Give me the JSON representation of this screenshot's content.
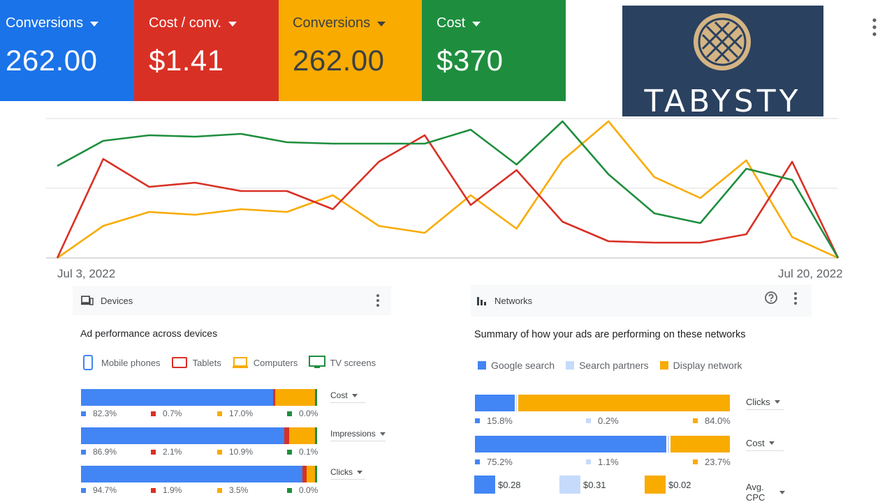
{
  "tiles": [
    {
      "label": "Conversions",
      "value": "262.00",
      "color": "#1a73e8",
      "text_color": "#ffffff"
    },
    {
      "label": "Cost / conv.",
      "value": "$1.41",
      "color": "#d93025",
      "text_color": "#ffffff"
    },
    {
      "label": "Conversions",
      "value": "262.00",
      "color": "#f9ab00",
      "text_color": "#3c4043"
    },
    {
      "label": "Cost",
      "value": "$370",
      "color": "#1e8e3e",
      "text_color": "#ffffff"
    }
  ],
  "logo": {
    "text": "TABYSTY",
    "background": "#2a4160",
    "emblem_color": "#d4b483"
  },
  "chart_data": {
    "type": "line",
    "x": [
      1,
      2,
      3,
      4,
      5,
      6,
      7,
      8,
      9,
      10,
      11,
      12,
      13,
      14,
      15,
      16,
      17,
      18
    ],
    "ylim": [
      0,
      100
    ],
    "grid": true,
    "series": [
      {
        "color": "#1e8e3e",
        "values": [
          66,
          84,
          88,
          87,
          89,
          83,
          82,
          82,
          82,
          92,
          67,
          98,
          60,
          32,
          25,
          64,
          56,
          0
        ]
      },
      {
        "color": "#d93025",
        "values": [
          0,
          71,
          51,
          54,
          48,
          48,
          35,
          69,
          88,
          38,
          63,
          26,
          12,
          11,
          11,
          17,
          69,
          0
        ]
      },
      {
        "color": "#f9ab00",
        "values": [
          0,
          23,
          33,
          31,
          35,
          33,
          45,
          23,
          18,
          45,
          21,
          70,
          98,
          58,
          43,
          70,
          15,
          0
        ]
      }
    ],
    "x_start_label": "Jul 3, 2022",
    "x_end_label": "Jul 20, 2022"
  },
  "devices": {
    "title": "Devices",
    "subtitle": "Ad performance across devices",
    "legend": [
      {
        "label": "Mobile phones",
        "icon": "mobile-phone-icon",
        "color": "#4285f4"
      },
      {
        "label": "Tablets",
        "icon": "tablet-icon",
        "color": "#d93025"
      },
      {
        "label": "Computers",
        "icon": "computer-icon",
        "color": "#f9ab00"
      },
      {
        "label": "TV screens",
        "icon": "tv-icon",
        "color": "#1e8e3e"
      }
    ],
    "rows": [
      {
        "metric": "Cost",
        "values": [
          82.3,
          0.7,
          17.0,
          0.0
        ],
        "labels": [
          "82.3%",
          "0.7%",
          "17.0%",
          "0.0%"
        ]
      },
      {
        "metric": "Impressions",
        "values": [
          86.9,
          2.1,
          10.9,
          0.1
        ],
        "labels": [
          "86.9%",
          "2.1%",
          "10.9%",
          "0.1%"
        ]
      },
      {
        "metric": "Clicks",
        "values": [
          94.7,
          1.9,
          3.5,
          0.0
        ],
        "labels": [
          "94.7%",
          "1.9%",
          "3.5%",
          "0.0%"
        ]
      }
    ]
  },
  "networks": {
    "title": "Networks",
    "subtitle": "Summary of how your ads are performing on these networks",
    "legend": [
      {
        "label": "Google search",
        "color": "#4285f4"
      },
      {
        "label": "Search partners",
        "color": "#c6dafc"
      },
      {
        "label": "Display network",
        "color": "#f9ab00"
      }
    ],
    "rows": [
      {
        "metric": "Clicks",
        "values": [
          15.8,
          0.2,
          84.0
        ],
        "labels": [
          "15.8%",
          "0.2%",
          "84.0%"
        ]
      },
      {
        "metric": "Cost",
        "values": [
          75.2,
          1.1,
          23.7
        ],
        "labels": [
          "75.2%",
          "1.1%",
          "23.7%"
        ]
      }
    ],
    "cpc": {
      "metric": "Avg. CPC",
      "labels": [
        "$0.28",
        "$0.31",
        "$0.02"
      ]
    }
  }
}
